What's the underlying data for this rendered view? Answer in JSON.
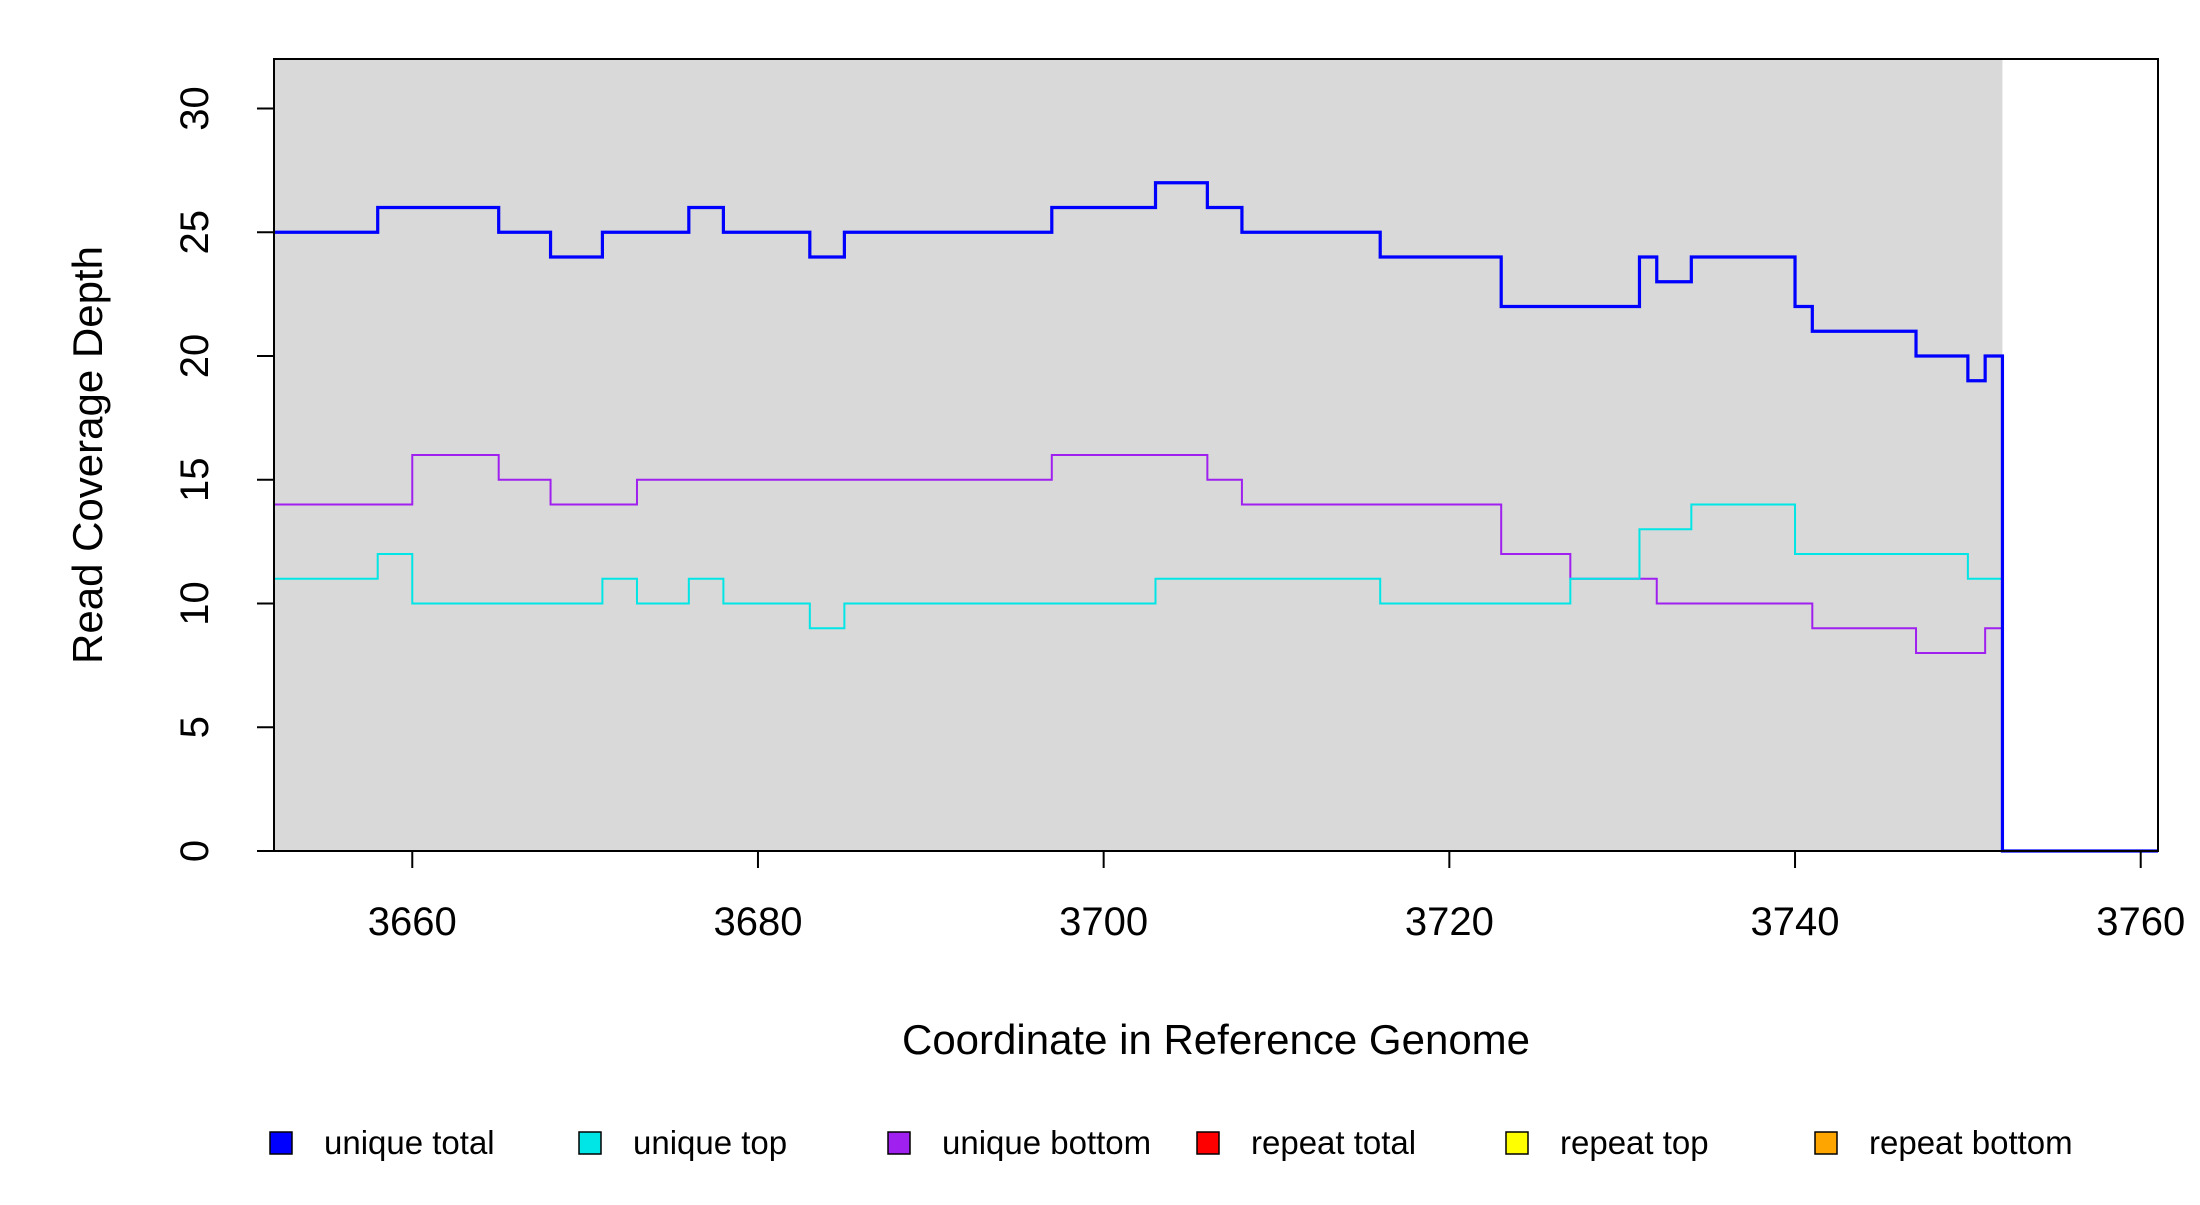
{
  "chart_data": {
    "type": "line",
    "title": "",
    "xlabel": "Coordinate in Reference Genome",
    "ylabel": "Read Coverage Depth",
    "xlim": [
      3652,
      3761
    ],
    "ylim": [
      0,
      32
    ],
    "x_ticks": [
      3660,
      3680,
      3700,
      3720,
      3740,
      3760
    ],
    "y_ticks": [
      0,
      5,
      10,
      15,
      20,
      25,
      30
    ],
    "x_tick_labels": [
      "3660",
      "3680",
      "3700",
      "3720",
      "3740",
      "3760"
    ],
    "y_tick_labels": [
      "0",
      "5",
      "10",
      "15",
      "20",
      "25",
      "30"
    ],
    "shaded_region": {
      "x": [
        3652,
        3752
      ],
      "color": "#d9d9d9"
    },
    "grid": false,
    "legend_position": "bottom",
    "series": [
      {
        "name": "unique total",
        "color": "#0000ff",
        "points": [
          [
            3652,
            25
          ],
          [
            3658,
            26
          ],
          [
            3665,
            25
          ],
          [
            3668,
            24
          ],
          [
            3671,
            25
          ],
          [
            3676,
            26
          ],
          [
            3678,
            25
          ],
          [
            3683,
            24
          ],
          [
            3685,
            25
          ],
          [
            3697,
            26
          ],
          [
            3703,
            27
          ],
          [
            3706,
            26
          ],
          [
            3708,
            25
          ],
          [
            3716,
            24
          ],
          [
            3723,
            22
          ],
          [
            3731,
            24
          ],
          [
            3732,
            23
          ],
          [
            3734,
            24
          ],
          [
            3740,
            22
          ],
          [
            3741,
            21
          ],
          [
            3747,
            20
          ],
          [
            3750,
            19
          ],
          [
            3751,
            20
          ],
          [
            3752,
            0
          ],
          [
            3761,
            0
          ]
        ]
      },
      {
        "name": "unique top",
        "color": "#00e5e5",
        "points": [
          [
            3652,
            11
          ],
          [
            3658,
            12
          ],
          [
            3660,
            10
          ],
          [
            3671,
            11
          ],
          [
            3673,
            10
          ],
          [
            3676,
            11
          ],
          [
            3678,
            10
          ],
          [
            3683,
            9
          ],
          [
            3685,
            10
          ],
          [
            3703,
            11
          ],
          [
            3716,
            10
          ],
          [
            3727,
            11
          ],
          [
            3731,
            13
          ],
          [
            3734,
            14
          ],
          [
            3740,
            12
          ],
          [
            3750,
            11
          ],
          [
            3752,
            0
          ],
          [
            3761,
            0
          ]
        ]
      },
      {
        "name": "unique bottom",
        "color": "#a020f0",
        "points": [
          [
            3652,
            14
          ],
          [
            3660,
            16
          ],
          [
            3665,
            15
          ],
          [
            3668,
            14
          ],
          [
            3673,
            15
          ],
          [
            3697,
            16
          ],
          [
            3706,
            15
          ],
          [
            3708,
            14
          ],
          [
            3723,
            12
          ],
          [
            3727,
            11
          ],
          [
            3732,
            10
          ],
          [
            3741,
            9
          ],
          [
            3747,
            8
          ],
          [
            3751,
            9
          ],
          [
            3752,
            0
          ],
          [
            3761,
            0
          ]
        ]
      },
      {
        "name": "repeat total",
        "color": "#ff0000",
        "points": [
          [
            3652,
            0
          ],
          [
            3752,
            0
          ]
        ]
      },
      {
        "name": "repeat top",
        "color": "#ffff00",
        "points": [
          [
            3652,
            0
          ],
          [
            3752,
            0
          ]
        ]
      },
      {
        "name": "repeat bottom",
        "color": "#ffa500",
        "points": [
          [
            3652,
            0
          ],
          [
            3752,
            0
          ]
        ]
      }
    ]
  }
}
